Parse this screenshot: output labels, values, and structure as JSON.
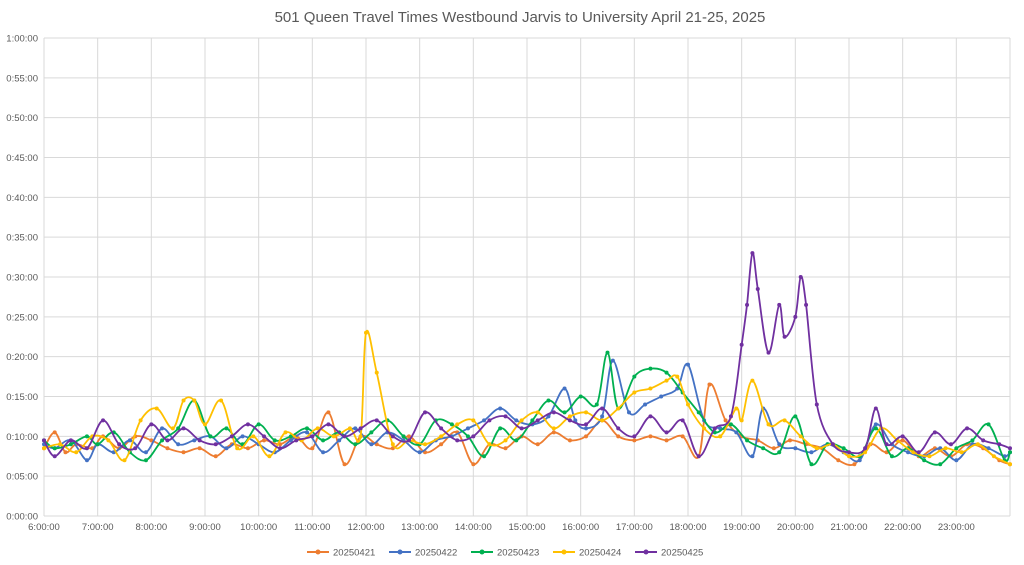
{
  "chart_data": {
    "type": "line",
    "title": "501 Queen Travel Times Westbound Jarvis to University April 21-25, 2025",
    "xlabel": "",
    "ylabel": "",
    "x_unit": "hour of day",
    "xlim": [
      6,
      24
    ],
    "ylim": [
      0,
      60
    ],
    "y_unit": "minutes",
    "x_ticks": [
      "6:00:00",
      "7:00:00",
      "8:00:00",
      "9:00:00",
      "10:00:00",
      "11:00:00",
      "12:00:00",
      "13:00:00",
      "14:00:00",
      "15:00:00",
      "16:00:00",
      "17:00:00",
      "18:00:00",
      "19:00:00",
      "20:00:00",
      "21:00:00",
      "22:00:00",
      "23:00:00"
    ],
    "y_ticks": [
      "0:00:00",
      "0:05:00",
      "0:10:00",
      "0:15:00",
      "0:20:00",
      "0:25:00",
      "0:30:00",
      "0:35:00",
      "0:40:00",
      "0:45:00",
      "0:50:00",
      "0:55:00",
      "1:00:00"
    ],
    "grid": true,
    "legend_position": "bottom",
    "series": [
      {
        "name": "20250421",
        "color": "#ED7D31",
        "x": [
          6.0,
          6.2,
          6.4,
          6.6,
          6.9,
          7.1,
          7.4,
          7.7,
          8.0,
          8.3,
          8.6,
          8.9,
          9.2,
          9.5,
          9.8,
          10.1,
          10.4,
          10.7,
          11.0,
          11.3,
          11.6,
          11.9,
          12.2,
          12.5,
          12.8,
          13.1,
          13.4,
          13.7,
          14.0,
          14.3,
          14.6,
          14.9,
          15.2,
          15.5,
          15.8,
          16.1,
          16.4,
          16.7,
          17.0,
          17.3,
          17.6,
          17.9,
          18.2,
          18.4,
          18.7,
          19.0,
          19.3,
          19.6,
          19.9,
          20.2,
          20.5,
          20.8,
          21.1,
          21.4,
          21.7,
          22.0,
          22.3,
          22.6,
          22.9,
          23.2,
          23.5,
          23.8,
          24.0
        ],
        "y": [
          8.5,
          10.5,
          8,
          9,
          8.5,
          10,
          8.5,
          10,
          9.5,
          8.5,
          8,
          8.5,
          7.5,
          9,
          8.5,
          9.5,
          9,
          10,
          8.5,
          13,
          6.5,
          10,
          9,
          8.5,
          10,
          8,
          9,
          10.5,
          6.5,
          9,
          8.5,
          10,
          9,
          10.5,
          9.5,
          10,
          12,
          10,
          9.5,
          10,
          9.5,
          10,
          7.5,
          16.5,
          12,
          10,
          9.5,
          8.5,
          9.5,
          9,
          8.5,
          7,
          6.5,
          9,
          8,
          9.5,
          7.5,
          8.5,
          7.5,
          9,
          8.5,
          7,
          6.5
        ]
      },
      {
        "name": "20250422",
        "color": "#4472C4",
        "x": [
          6.0,
          6.2,
          6.5,
          6.8,
          7.0,
          7.3,
          7.6,
          7.9,
          8.2,
          8.5,
          8.8,
          9.1,
          9.4,
          9.7,
          10.0,
          10.3,
          10.6,
          10.9,
          11.2,
          11.5,
          11.8,
          12.1,
          12.4,
          12.7,
          13.0,
          13.3,
          13.6,
          13.9,
          14.2,
          14.5,
          14.8,
          15.1,
          15.4,
          15.7,
          15.9,
          16.1,
          16.4,
          16.6,
          16.9,
          17.2,
          17.5,
          17.8,
          18.0,
          18.3,
          18.6,
          18.9,
          19.2,
          19.4,
          19.7,
          20.0,
          20.3,
          20.6,
          20.9,
          21.2,
          21.5,
          21.8,
          22.1,
          22.4,
          22.7,
          23.0,
          23.3,
          23.6,
          23.9,
          24.0
        ],
        "y": [
          9,
          8.5,
          9.5,
          7,
          9,
          8,
          9.5,
          8,
          11,
          9,
          9.5,
          10,
          8.5,
          10,
          9,
          8,
          9.5,
          10.5,
          8,
          9.5,
          11,
          9,
          10.5,
          9.5,
          8,
          9.5,
          10,
          11,
          12,
          13.5,
          12,
          11.5,
          12.5,
          16,
          12,
          11,
          12.5,
          19.5,
          13,
          14,
          15,
          16,
          19,
          12,
          11,
          10.5,
          7.5,
          13.5,
          9,
          8.5,
          8,
          9,
          8,
          7,
          11.5,
          9,
          8,
          7.5,
          8.5,
          7,
          9,
          8.5,
          7.5,
          8
        ]
      },
      {
        "name": "20250423",
        "color": "#00B050",
        "x": [
          6.0,
          6.2,
          6.5,
          6.8,
          7.0,
          7.3,
          7.6,
          7.9,
          8.2,
          8.5,
          8.8,
          9.1,
          9.4,
          9.7,
          10.0,
          10.3,
          10.6,
          10.9,
          11.2,
          11.5,
          11.8,
          12.1,
          12.4,
          12.7,
          13.0,
          13.3,
          13.6,
          13.9,
          14.2,
          14.5,
          14.8,
          15.1,
          15.4,
          15.7,
          16.0,
          16.3,
          16.5,
          16.7,
          17.0,
          17.3,
          17.6,
          17.9,
          18.2,
          18.5,
          18.8,
          19.1,
          19.4,
          19.7,
          20.0,
          20.3,
          20.6,
          20.9,
          21.2,
          21.5,
          21.8,
          22.1,
          22.4,
          22.7,
          23.0,
          23.3,
          23.6,
          23.9,
          24.0
        ],
        "y": [
          9.5,
          8.5,
          9,
          10,
          9,
          10.5,
          8,
          7,
          9.5,
          11,
          14.5,
          10,
          11,
          9,
          11.5,
          9.5,
          10,
          11,
          9.5,
          10.5,
          9,
          10.5,
          12,
          10,
          9,
          12,
          11.5,
          10,
          7.5,
          11,
          9.5,
          12,
          14.5,
          13,
          15,
          14,
          20.5,
          13.5,
          17.5,
          18.5,
          18,
          15.5,
          13,
          10.5,
          11.5,
          9.5,
          8.5,
          8,
          12.5,
          6.5,
          9,
          8.5,
          7.5,
          11,
          7.5,
          8.5,
          7,
          6.5,
          8.5,
          9.5,
          11.5,
          7,
          8
        ]
      },
      {
        "name": "20250424",
        "color": "#FFC000",
        "x": [
          6.0,
          6.3,
          6.6,
          6.9,
          7.2,
          7.5,
          7.8,
          8.1,
          8.4,
          8.6,
          8.8,
          9.0,
          9.3,
          9.6,
          9.9,
          10.2,
          10.5,
          10.8,
          11.1,
          11.4,
          11.7,
          11.9,
          12.0,
          12.2,
          12.5,
          12.8,
          13.1,
          13.4,
          13.7,
          14.0,
          14.3,
          14.6,
          14.9,
          15.2,
          15.5,
          15.8,
          16.1,
          16.4,
          16.7,
          17.0,
          17.3,
          17.6,
          17.8,
          18.0,
          18.3,
          18.6,
          18.9,
          19.0,
          19.2,
          19.5,
          19.8,
          20.1,
          20.4,
          20.7,
          21.0,
          21.3,
          21.6,
          21.9,
          22.2,
          22.5,
          22.8,
          23.1,
          23.4,
          23.7,
          24.0
        ],
        "y": [
          8.5,
          9,
          8,
          10,
          9.5,
          7,
          12,
          13.5,
          11,
          14.5,
          14.5,
          11.5,
          14.5,
          8.5,
          10,
          7.5,
          10.5,
          9.5,
          11,
          10,
          11,
          10,
          23,
          18,
          9,
          9.5,
          9,
          10,
          11.5,
          12,
          9,
          9.5,
          12,
          13,
          11,
          12.5,
          13,
          12,
          13.5,
          15.5,
          16,
          17,
          17.5,
          14,
          11,
          10,
          13.5,
          12,
          17,
          11.5,
          12,
          10,
          8.5,
          9,
          7.5,
          8,
          11,
          9.5,
          8,
          7.5,
          8.5,
          8,
          9,
          7.5,
          6.5
        ]
      },
      {
        "name": "20250425",
        "color": "#7030A0",
        "x": [
          6.0,
          6.2,
          6.5,
          6.8,
          7.1,
          7.4,
          7.7,
          8.0,
          8.3,
          8.6,
          8.9,
          9.2,
          9.5,
          9.8,
          10.1,
          10.4,
          10.7,
          11.0,
          11.3,
          11.6,
          11.9,
          12.2,
          12.5,
          12.8,
          13.1,
          13.4,
          13.7,
          14.0,
          14.3,
          14.6,
          14.9,
          15.2,
          15.5,
          15.8,
          16.1,
          16.4,
          16.7,
          17.0,
          17.3,
          17.6,
          17.9,
          18.2,
          18.5,
          18.8,
          19.0,
          19.1,
          19.2,
          19.3,
          19.5,
          19.7,
          19.8,
          20.0,
          20.1,
          20.2,
          20.4,
          20.7,
          21.0,
          21.3,
          21.5,
          21.7,
          22.0,
          22.3,
          22.6,
          22.9,
          23.2,
          23.5,
          23.8,
          24.0
        ],
        "y": [
          9.5,
          7.5,
          9.5,
          8.5,
          12,
          9,
          8.5,
          11.5,
          9.5,
          11,
          9.5,
          9,
          10,
          11.5,
          10,
          8.5,
          9.5,
          10,
          11.5,
          10,
          11,
          12,
          10,
          9.5,
          13,
          11,
          9.5,
          10,
          12,
          12.5,
          11,
          12,
          13,
          12,
          11.5,
          13.5,
          11,
          10,
          12.5,
          10.5,
          12,
          7.5,
          11,
          12.5,
          21.5,
          26.5,
          33,
          28.5,
          20.5,
          26.5,
          22.5,
          25,
          30,
          26.5,
          14,
          9,
          8,
          8.5,
          13.5,
          9,
          10,
          8,
          10.5,
          9,
          11,
          9.5,
          9,
          8.5
        ]
      }
    ]
  }
}
